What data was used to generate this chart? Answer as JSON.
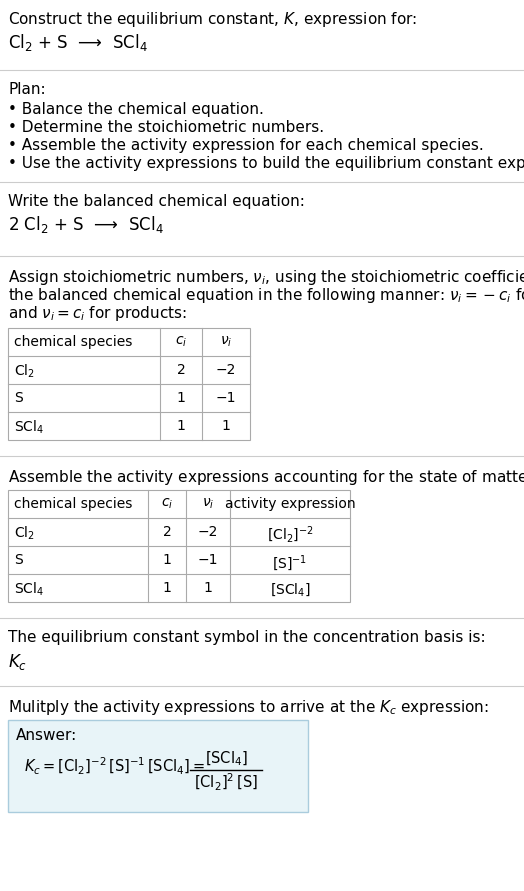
{
  "bg_color": "#ffffff",
  "text_color": "#000000",
  "table_border_color": "#aaaaaa",
  "answer_box_color": "#e8f4f8",
  "answer_box_border": "#aaccdd",
  "title_text": "Construct the equilibrium constant, $K$, expression for:",
  "reaction_unbalanced": "Cl$_2$ + S  ⟶  SCl$_4$",
  "plan_header": "Plan:",
  "plan_items": [
    "• Balance the chemical equation.",
    "• Determine the stoichiometric numbers.",
    "• Assemble the activity expression for each chemical species.",
    "• Use the activity expressions to build the equilibrium constant expression."
  ],
  "balanced_header": "Write the balanced chemical equation:",
  "balanced_eq": "2 Cl$_2$ + S  ⟶  SCl$_4$",
  "stoich_para": [
    "Assign stoichiometric numbers, $\\nu_i$, using the stoichiometric coefficients, $c_i$, from",
    "the balanced chemical equation in the following manner: $\\nu_i = -c_i$ for reactants",
    "and $\\nu_i = c_i$ for products:"
  ],
  "table1_headers": [
    "chemical species",
    "$c_i$",
    "$\\nu_i$"
  ],
  "table1_rows": [
    [
      "Cl$_2$",
      "2",
      "−2"
    ],
    [
      "S",
      "1",
      "−1"
    ],
    [
      "SCl$_4$",
      "1",
      "1"
    ]
  ],
  "assemble_para": "Assemble the activity expressions accounting for the state of matter and $\\nu_i$:",
  "table2_headers": [
    "chemical species",
    "$c_i$",
    "$\\nu_i$",
    "activity expression"
  ],
  "table2_rows": [
    [
      "Cl$_2$",
      "2",
      "−2",
      "[Cl$_2$]$^{-2}$"
    ],
    [
      "S",
      "1",
      "−1",
      "[S]$^{-1}$"
    ],
    [
      "SCl$_4$",
      "1",
      "1",
      "[SCl$_4$]"
    ]
  ],
  "kc_para": "The equilibrium constant symbol in the concentration basis is:",
  "kc_symbol": "$K_c$",
  "multiply_para": "Mulitply the activity expressions to arrive at the $K_c$ expression:",
  "answer_label": "Answer:"
}
